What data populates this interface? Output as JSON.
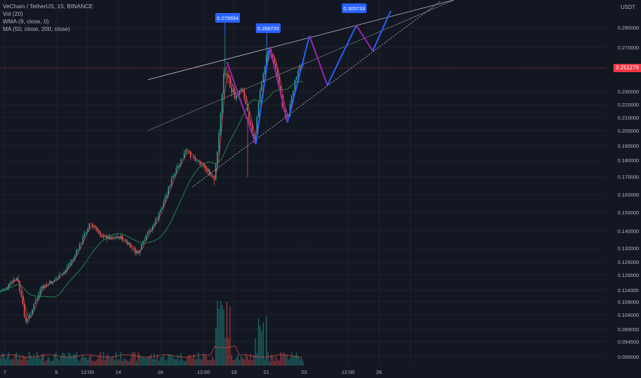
{
  "legend": {
    "symbol": "VeChain / TetherUS, 15, BINANCE",
    "vol": "Vol (20)",
    "wma": "WMA (9, close, 0)",
    "ma": "MA (50, close, 200, close)"
  },
  "axis_unit": "USDT",
  "current_price": "0.251279",
  "chart_data": {
    "type": "candlestick",
    "y_ticks": [
      "0.290000",
      "0.270000",
      "0.250000",
      "0.230000",
      "0.220000",
      "0.210000",
      "0.200000",
      "0.190000",
      "0.180000",
      "0.170000",
      "0.160000",
      "0.150000",
      "0.140000",
      "0.132000",
      "0.126000",
      "0.120000",
      "0.114000",
      "0.109000",
      "0.104000",
      "0.099000",
      "0.094500",
      "0.090000"
    ],
    "x_ticks": [
      "7",
      "9",
      "12:00",
      "14",
      "16",
      "12:00",
      "19",
      "21",
      "23",
      "12:00",
      "26"
    ],
    "annotations": [
      "0.279554",
      "0.268720",
      "0.305733"
    ],
    "colors": {
      "up": "#26a69a",
      "down": "#ef5350",
      "wma": "#ef5350",
      "ma50": "#1e8a4c",
      "ma200": "#2962ff",
      "bg": "#131722"
    }
  }
}
